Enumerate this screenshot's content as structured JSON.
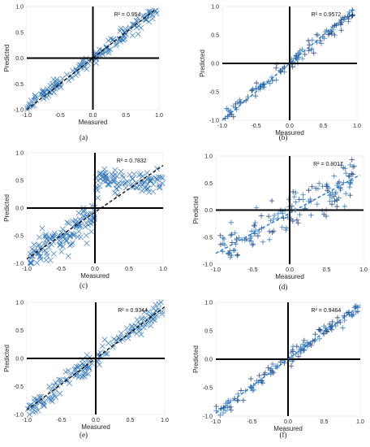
{
  "figure": {
    "chart_data": [
      {
        "type": "scatter",
        "panel_label": "(a)",
        "r2_label": "R² = 0.954",
        "xlabel": "Measured",
        "ylabel": "Predicted",
        "xlim": [
          -1.0,
          1.0
        ],
        "ylim": [
          -1.0,
          1.0
        ],
        "xticks": [
          "-1.0",
          "-0.5",
          "0.0",
          "0.5",
          "1.0"
        ],
        "yticks": [
          "1.0",
          "0.5",
          "0.0",
          "-0.5",
          "-1.0"
        ],
        "marker": "x",
        "trend_color": "#111111",
        "trend": [
          [
            -1.0,
            -1.0
          ],
          [
            0.95,
            0.95
          ]
        ]
      },
      {
        "type": "scatter",
        "panel_label": "(b)",
        "r2_label": "R² = 0.9572",
        "xlabel": "Measured",
        "ylabel": "Predicted",
        "xlim": [
          -1.0,
          1.0
        ],
        "ylim": [
          -1.0,
          1.0
        ],
        "xticks": [
          "-1.0",
          "-0.5",
          "0.0",
          "0.5",
          "1.0"
        ],
        "yticks": [
          "1.0",
          "0.5",
          "0.0",
          "-0.5",
          "-1.0"
        ],
        "marker": "+",
        "trend_color": "#1f77c4",
        "trend": [
          [
            -1.0,
            -1.0
          ],
          [
            0.95,
            0.95
          ]
        ]
      },
      {
        "type": "scatter",
        "panel_label": "(c)",
        "r2_label": "R² = 0.7832",
        "xlabel": "Measured",
        "ylabel": "Predicted",
        "xlim": [
          -1.0,
          1.0
        ],
        "ylim": [
          -1.0,
          1.0
        ],
        "xticks": [
          "-1.0",
          "-0.5",
          "0.0",
          "0.5",
          "1.0"
        ],
        "yticks": [
          "1.0",
          "0.5",
          "0.0",
          "-0.5",
          "-1.0"
        ],
        "marker": "x",
        "trend_color": "#111111",
        "trend": [
          [
            -1.0,
            -0.92
          ],
          [
            1.0,
            0.77
          ]
        ]
      },
      {
        "type": "scatter",
        "panel_label": "(d)",
        "r2_label": "R² = 0.8017",
        "xlabel": "Measured",
        "ylabel": "Predicted",
        "xlim": [
          -1.0,
          1.0
        ],
        "ylim": [
          -1.0,
          1.0
        ],
        "xticks": [
          "-1.0",
          "-0.5",
          "0.0",
          "0.5",
          "1.0"
        ],
        "yticks": [
          "1.0",
          "0.5",
          "0.0",
          "-0.5",
          "-1.0"
        ],
        "marker": "+",
        "trend_color": "#1f77c4",
        "trend": [
          [
            -1.0,
            -0.8
          ],
          [
            0.95,
            0.65
          ]
        ]
      },
      {
        "type": "scatter",
        "panel_label": "(e)",
        "r2_label": "R² = 0.9344",
        "xlabel": "Measured",
        "ylabel": "Predicted",
        "xlim": [
          -1.0,
          1.0
        ],
        "ylim": [
          -1.0,
          1.0
        ],
        "xticks": [
          "-1.0",
          "-0.5",
          "0.0",
          "0.5",
          "1.0"
        ],
        "yticks": [
          "1.0",
          "0.5",
          "0.0",
          "-0.5",
          "-1.0"
        ],
        "marker": "x",
        "trend_color": "#111111",
        "trend": [
          [
            -1.0,
            -0.92
          ],
          [
            1.0,
            0.92
          ]
        ]
      },
      {
        "type": "scatter",
        "panel_label": "(f)",
        "r2_label": "R² = 0.9464",
        "xlabel": "Measured",
        "ylabel": "Predicted",
        "xlim": [
          -1.0,
          1.0
        ],
        "ylim": [
          -1.0,
          1.0
        ],
        "xticks": [
          "-1.0",
          "-0.5",
          "0.0",
          "0.5",
          "1.0"
        ],
        "yticks": [
          "1.0",
          "0.5",
          "0.0",
          "-0.5",
          "-1.0"
        ],
        "marker": "+",
        "trend_color": "#1f77c4",
        "trend": [
          [
            -1.0,
            -0.95
          ],
          [
            1.0,
            0.95
          ]
        ]
      }
    ],
    "marker_color": "#2f74b5",
    "marker_color_dark": "#1c3f7a"
  }
}
